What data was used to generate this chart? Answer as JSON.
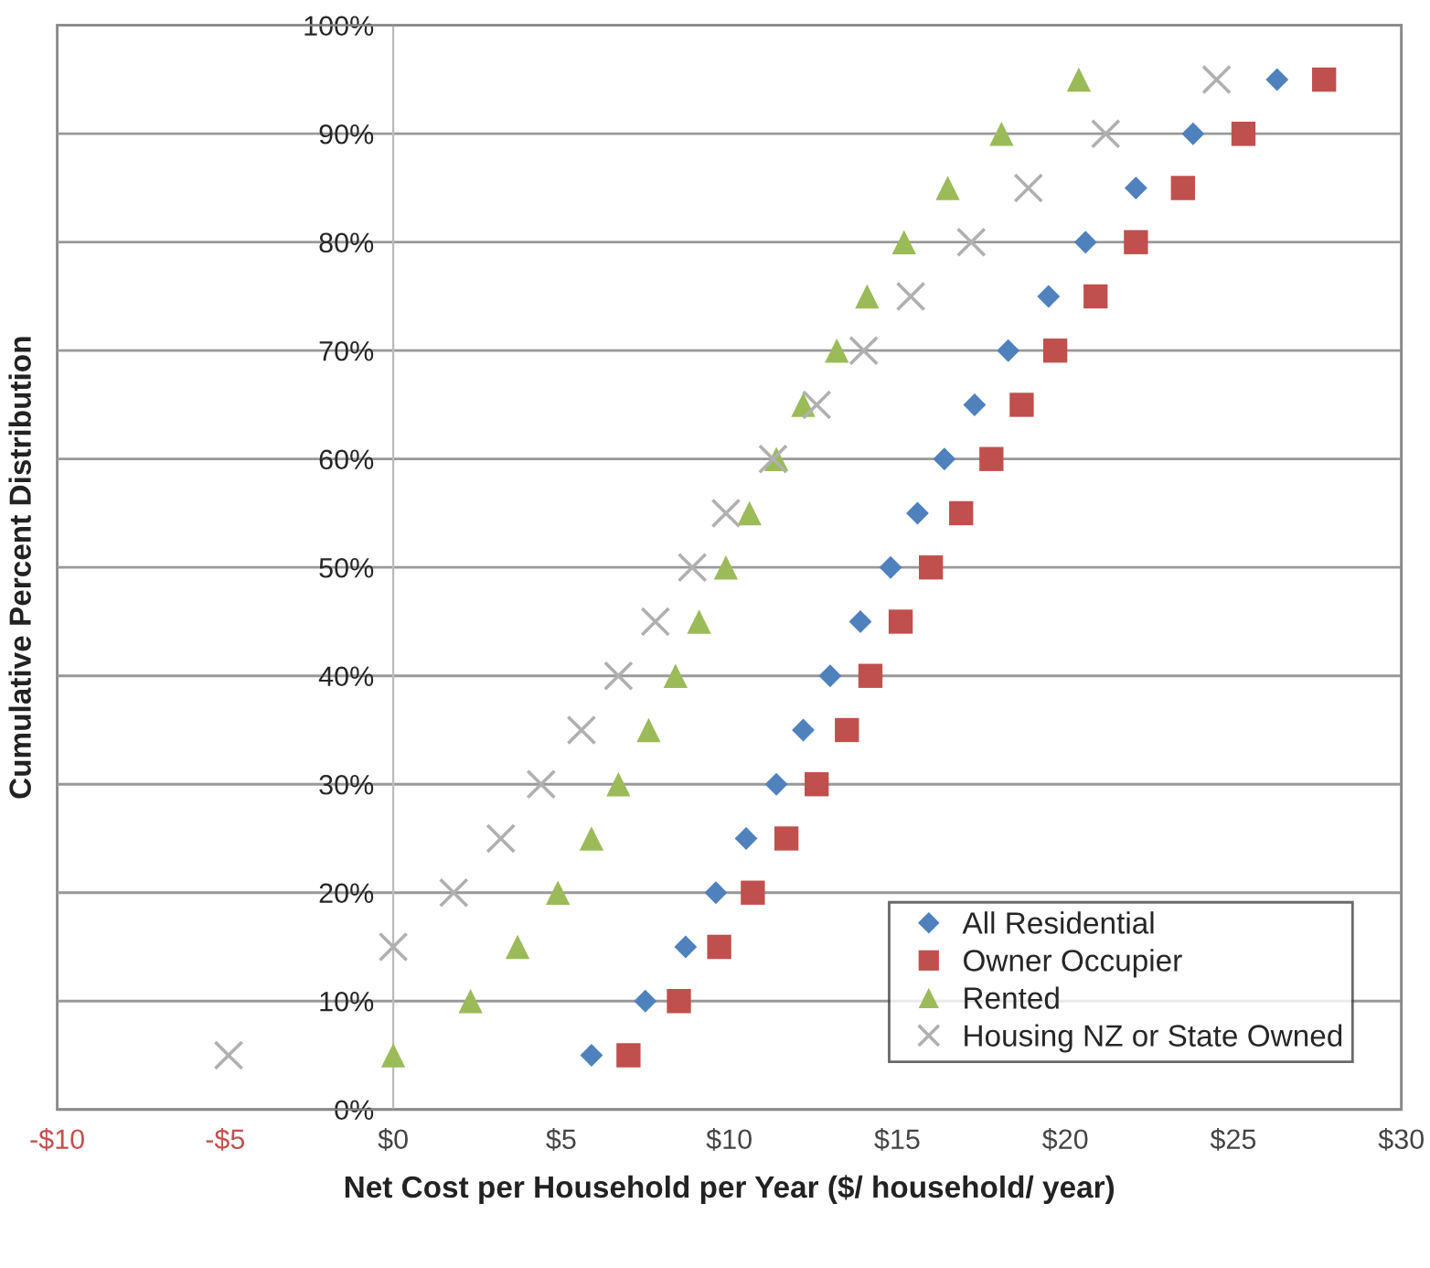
{
  "chart_data": {
    "type": "scatter",
    "xlabel": "Net Cost per Household per Year ($/ household/ year)",
    "ylabel": "Cumulative Percent Distribution",
    "xlim": [
      -10,
      30
    ],
    "xticks": [
      {
        "value": -10,
        "label": "-$10"
      },
      {
        "value": -5,
        "label": "-$5"
      },
      {
        "value": 0,
        "label": "$0"
      },
      {
        "value": 5,
        "label": "$5"
      },
      {
        "value": 10,
        "label": "$10"
      },
      {
        "value": 15,
        "label": "$15"
      },
      {
        "value": 20,
        "label": "$20"
      },
      {
        "value": 25,
        "label": "$25"
      },
      {
        "value": 30,
        "label": "$30"
      }
    ],
    "ylim": [
      0,
      100
    ],
    "yticks": [
      {
        "value": 0,
        "label": "0%"
      },
      {
        "value": 10,
        "label": "10%"
      },
      {
        "value": 20,
        "label": "20%"
      },
      {
        "value": 30,
        "label": "30%"
      },
      {
        "value": 40,
        "label": "40%"
      },
      {
        "value": 50,
        "label": "50%"
      },
      {
        "value": 60,
        "label": "60%"
      },
      {
        "value": 70,
        "label": "70%"
      },
      {
        "value": 80,
        "label": "80%"
      },
      {
        "value": 90,
        "label": "90%"
      },
      {
        "value": 100,
        "label": "100%"
      }
    ],
    "grid": "y",
    "legend": "bottom right",
    "series": [
      {
        "name": "All Residential",
        "color": "#4f81bd",
        "marker": "diamond",
        "x": [
          5.9,
          7.5,
          8.7,
          9.6,
          10.5,
          11.4,
          12.2,
          13.0,
          13.9,
          14.8,
          15.6,
          16.4,
          17.3,
          18.3,
          19.5,
          20.6,
          22.1,
          23.8,
          26.3
        ],
        "values": [
          5,
          10,
          15,
          20,
          25,
          30,
          35,
          40,
          45,
          50,
          55,
          60,
          65,
          70,
          75,
          80,
          85,
          90,
          95
        ]
      },
      {
        "name": "Owner Occupier",
        "color": "#c0504d",
        "marker": "square",
        "x": [
          7.0,
          8.5,
          9.7,
          10.7,
          11.7,
          12.6,
          13.5,
          14.2,
          15.1,
          16.0,
          16.9,
          17.8,
          18.7,
          19.7,
          20.9,
          22.1,
          23.5,
          25.3,
          27.7
        ],
        "values": [
          5,
          10,
          15,
          20,
          25,
          30,
          35,
          40,
          45,
          50,
          55,
          60,
          65,
          70,
          75,
          80,
          85,
          90,
          95
        ]
      },
      {
        "name": "Rented",
        "color": "#9bbb59",
        "marker": "triangle",
        "x": [
          0.0,
          2.3,
          3.7,
          4.9,
          5.9,
          6.7,
          7.6,
          8.4,
          9.1,
          9.9,
          10.6,
          11.4,
          12.2,
          13.2,
          14.1,
          15.2,
          16.5,
          18.1,
          20.4
        ],
        "values": [
          5,
          10,
          15,
          20,
          25,
          30,
          35,
          40,
          45,
          50,
          55,
          60,
          65,
          70,
          75,
          80,
          85,
          90,
          95
        ]
      },
      {
        "name": "Housing NZ or State Owned",
        "color": "#b0b0b0",
        "marker": "cross",
        "x": [
          -4.9,
          0.0,
          1.8,
          3.2,
          4.4,
          5.6,
          6.7,
          7.8,
          8.9,
          9.9,
          11.3,
          12.6,
          14.0,
          15.4,
          17.2,
          18.9,
          21.2,
          24.5
        ],
        "values": [
          5,
          15,
          20,
          25,
          30,
          35,
          40,
          45,
          50,
          55,
          60,
          65,
          70,
          75,
          80,
          85,
          90,
          95
        ]
      }
    ]
  }
}
